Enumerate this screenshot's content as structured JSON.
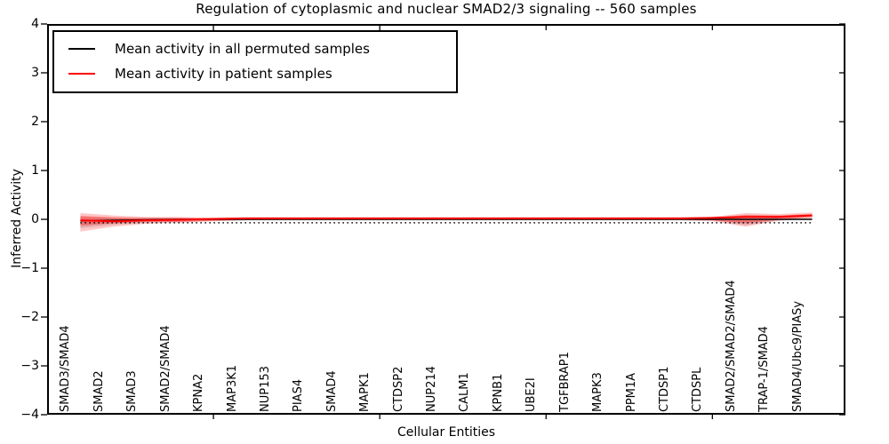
{
  "title": "Regulation of cytoplasmic and nuclear SMAD2/3 signaling -- 560 samples",
  "legend": {
    "items": [
      {
        "label": "Mean activity in all permuted samples",
        "color": "#000000"
      },
      {
        "label": "Mean activity in patient samples",
        "color": "#ff0000"
      }
    ]
  },
  "chart_data": {
    "type": "line",
    "title": "Regulation of cytoplasmic and nuclear SMAD2/3 signaling -- 560 samples",
    "xlabel": "Cellular Entities",
    "ylabel": "Inferred Activity",
    "ylim": [
      -4,
      4
    ],
    "xlim": [
      0,
      24
    ],
    "grid": false,
    "legend_position": "upper left",
    "ytick_labels": [
      "4",
      "3",
      "2",
      "1",
      "0",
      "−1",
      "−2",
      "−3",
      "−4"
    ],
    "ytick_values": [
      4,
      3,
      2,
      1,
      0,
      -1,
      -2,
      -3,
      -4
    ],
    "xtick_major_values": [
      5,
      10,
      15,
      20
    ],
    "categories": [
      "SMAD3/SMAD4",
      "SMAD2",
      "SMAD3",
      "SMAD2/SMAD4",
      "KPNA2",
      "MAP3K1",
      "NUP153",
      "PIAS4",
      "SMAD4",
      "MAPK1",
      "CTDSP2",
      "NUP214",
      "CALM1",
      "KPNB1",
      "UBE2I",
      "TGFBRAP1",
      "MAPK3",
      "PPM1A",
      "CTDSP1",
      "CTDSPL",
      "SMAD2/SMAD2/SMAD4",
      "TRAP-1/SMAD4",
      "SMAD4/Ubc9/PIASy"
    ],
    "series": [
      {
        "name": "Mean activity in all permuted samples",
        "color": "#000000",
        "style": "solid",
        "width": 1.5,
        "values": [
          -0.03,
          -0.02,
          -0.01,
          0,
          0,
          0,
          0,
          0,
          0,
          0,
          0,
          0,
          0,
          0,
          0,
          0,
          0,
          0,
          0,
          0,
          0,
          0,
          0
        ]
      },
      {
        "name": "Permuted samples range (dotted)",
        "color": "#000000",
        "style": "dotted",
        "width": 1.5,
        "values": [
          -0.07,
          -0.07,
          -0.07,
          -0.07,
          -0.07,
          -0.07,
          -0.07,
          -0.07,
          -0.07,
          -0.07,
          -0.07,
          -0.07,
          -0.07,
          -0.07,
          -0.07,
          -0.07,
          -0.07,
          -0.07,
          -0.07,
          -0.07,
          -0.07,
          -0.07,
          -0.07
        ]
      },
      {
        "name": "Mean activity in patient samples",
        "color": "#ff0000",
        "style": "solid",
        "width": 2,
        "values": [
          -0.02,
          -0.04,
          -0.02,
          -0.01,
          0.01,
          0.02,
          0.02,
          0.02,
          0.02,
          0.02,
          0.02,
          0.02,
          0.02,
          0.02,
          0.02,
          0.02,
          0.02,
          0.02,
          0.02,
          0.03,
          0.05,
          0.05,
          0.08
        ]
      }
    ],
    "bands": [
      {
        "name": "permuted-range-band",
        "color": "#888888",
        "opacity": 0.3,
        "upper": [
          0.05,
          0.03,
          0.02,
          0.01,
          0.01,
          0.01,
          0.01,
          0.01,
          0.01,
          0.01,
          0.01,
          0.01,
          0.01,
          0.01,
          0.01,
          0.01,
          0.01,
          0.01,
          0.01,
          0.01,
          0.02,
          0.01,
          0.01
        ],
        "lower": [
          -0.18,
          -0.11,
          -0.07,
          -0.05,
          -0.03,
          -0.02,
          -0.01,
          -0.01,
          -0.01,
          -0.01,
          -0.01,
          -0.01,
          -0.01,
          -0.01,
          -0.01,
          -0.01,
          -0.01,
          -0.01,
          -0.01,
          -0.02,
          -0.12,
          -0.02,
          -0.01
        ]
      },
      {
        "name": "patient-range-outer-band",
        "color": "#ff0000",
        "opacity": 0.22,
        "upper": [
          0.13,
          0.08,
          0.05,
          0.05,
          0.03,
          0.03,
          0.03,
          0.03,
          0.03,
          0.03,
          0.03,
          0.03,
          0.03,
          0.03,
          0.03,
          0.03,
          0.03,
          0.03,
          0.03,
          0.05,
          0.13,
          0.11,
          0.14
        ],
        "lower": [
          -0.25,
          -0.15,
          -0.09,
          -0.07,
          -0.04,
          -0.02,
          -0.02,
          -0.02,
          -0.02,
          -0.02,
          -0.02,
          -0.02,
          -0.02,
          -0.02,
          -0.02,
          -0.02,
          -0.02,
          -0.02,
          -0.02,
          -0.04,
          -0.15,
          -0.03,
          0.02
        ]
      },
      {
        "name": "patient-range-inner-band",
        "color": "#ff0000",
        "opacity": 0.35,
        "upper": [
          0.07,
          0.04,
          0.03,
          0.03,
          0.02,
          0.02,
          0.02,
          0.02,
          0.02,
          0.02,
          0.02,
          0.02,
          0.02,
          0.02,
          0.02,
          0.02,
          0.02,
          0.02,
          0.02,
          0.04,
          0.09,
          0.08,
          0.11
        ],
        "lower": [
          -0.13,
          -0.08,
          -0.05,
          -0.05,
          -0.03,
          -0.01,
          -0.01,
          -0.01,
          -0.01,
          -0.01,
          -0.01,
          -0.01,
          -0.01,
          -0.01,
          -0.01,
          -0.01,
          -0.01,
          -0.01,
          -0.01,
          -0.02,
          -0.08,
          -0.01,
          0.05
        ]
      }
    ]
  }
}
